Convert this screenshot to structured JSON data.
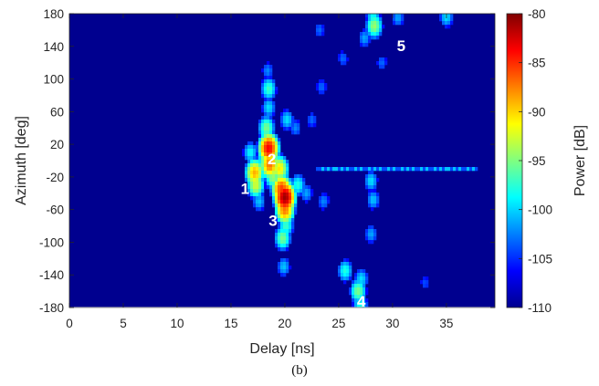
{
  "caption": "(b)",
  "chart_data": {
    "type": "heatmap",
    "title": "",
    "xlabel": "Delay [ns]",
    "ylabel": "Azimuth [deg]",
    "xlim": [
      0,
      39.5
    ],
    "ylim": [
      -180,
      180
    ],
    "xticks": [
      0,
      5,
      10,
      15,
      20,
      25,
      30,
      35
    ],
    "yticks": [
      -180,
      -140,
      -100,
      -60,
      -20,
      20,
      60,
      100,
      140,
      180
    ],
    "background_power_db": -110,
    "colorbar": {
      "label": "Power [dB]",
      "range": [
        -110,
        -80
      ],
      "ticks": [
        -80,
        -85,
        -90,
        -95,
        -100,
        -105,
        -110
      ],
      "colormap": "jet"
    },
    "blobs": [
      {
        "delay": 16.8,
        "az": 10,
        "power": -101
      },
      {
        "delay": 17.2,
        "az": -15,
        "power": -90
      },
      {
        "delay": 17.3,
        "az": -30,
        "power": -94
      },
      {
        "delay": 17.6,
        "az": -50,
        "power": -103
      },
      {
        "delay": 18.1,
        "az": 0,
        "power": -98
      },
      {
        "delay": 18.3,
        "az": 40,
        "power": -97
      },
      {
        "delay": 18.5,
        "az": 65,
        "power": -102
      },
      {
        "delay": 18.5,
        "az": 88,
        "power": -99
      },
      {
        "delay": 18.4,
        "az": 110,
        "power": -105
      },
      {
        "delay": 18.5,
        "az": 15,
        "power": -84
      },
      {
        "delay": 18.6,
        "az": -5,
        "power": -88
      },
      {
        "delay": 18.9,
        "az": -20,
        "power": -96
      },
      {
        "delay": 19.5,
        "az": -10,
        "power": -92
      },
      {
        "delay": 19.7,
        "az": -35,
        "power": -86
      },
      {
        "delay": 20.0,
        "az": -45,
        "power": -81
      },
      {
        "delay": 20.0,
        "az": -60,
        "power": -88
      },
      {
        "delay": 20.1,
        "az": -80,
        "power": -99
      },
      {
        "delay": 19.8,
        "az": -95,
        "power": -97
      },
      {
        "delay": 19.9,
        "az": -130,
        "power": -103
      },
      {
        "delay": 20.2,
        "az": 50,
        "power": -102
      },
      {
        "delay": 21.0,
        "az": 40,
        "power": -105
      },
      {
        "delay": 21.2,
        "az": -30,
        "power": -100
      },
      {
        "delay": 22.0,
        "az": -40,
        "power": -104
      },
      {
        "delay": 22.5,
        "az": 50,
        "power": -106
      },
      {
        "delay": 23.6,
        "az": -50,
        "power": -105
      },
      {
        "delay": 23.4,
        "az": 90,
        "power": -106
      },
      {
        "delay": 23.2,
        "az": 160,
        "power": -106
      },
      {
        "delay": 25.4,
        "az": 125,
        "power": -106
      },
      {
        "delay": 27.0,
        "az": -178,
        "power": -100
      },
      {
        "delay": 26.8,
        "az": -160,
        "power": -97
      },
      {
        "delay": 27.1,
        "az": -145,
        "power": -102
      },
      {
        "delay": 25.6,
        "az": -135,
        "power": -100
      },
      {
        "delay": 28.0,
        "az": -90,
        "power": -104
      },
      {
        "delay": 28.0,
        "az": -25,
        "power": -102
      },
      {
        "delay": 28.2,
        "az": -48,
        "power": -103
      },
      {
        "delay": 28.3,
        "az": 165,
        "power": -96
      },
      {
        "delay": 28.2,
        "az": 178,
        "power": -101
      },
      {
        "delay": 27.4,
        "az": 150,
        "power": -104
      },
      {
        "delay": 29.0,
        "az": 120,
        "power": -106
      },
      {
        "delay": 30.5,
        "az": 175,
        "power": -104
      },
      {
        "delay": 35.0,
        "az": 176,
        "power": -102
      },
      {
        "delay": 33.0,
        "az": -150,
        "power": -107
      }
    ],
    "ridge": {
      "az": -10,
      "delay_from": 23,
      "delay_to": 38,
      "power": -103
    },
    "annotations": [
      {
        "text": "1",
        "delay": 16.3,
        "az": -34
      },
      {
        "text": "2",
        "delay": 18.8,
        "az": 2
      },
      {
        "text": "3",
        "delay": 18.9,
        "az": -73
      },
      {
        "text": "4",
        "delay": 27.1,
        "az": -172
      },
      {
        "text": "5",
        "delay": 30.8,
        "az": 141
      }
    ]
  }
}
